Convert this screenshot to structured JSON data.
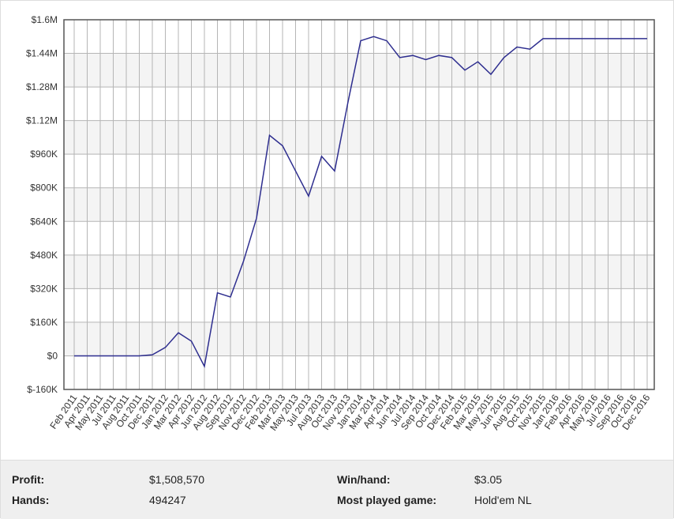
{
  "chart_data": {
    "type": "line",
    "categories": [
      "Feb 2011",
      "Apr 2011",
      "May 2011",
      "Jul 2011",
      "Aug 2011",
      "Oct 2011",
      "Dec 2011",
      "Jan 2012",
      "Mar 2012",
      "Apr 2012",
      "Jun 2012",
      "Aug 2012",
      "Sep 2012",
      "Nov 2012",
      "Dec 2012",
      "Feb 2013",
      "Mar 2013",
      "May 2013",
      "Jul 2013",
      "Aug 2013",
      "Oct 2013",
      "Nov 2013",
      "Jan 2014",
      "Mar 2014",
      "Apr 2014",
      "Jun 2014",
      "Jul 2014",
      "Sep 2014",
      "Oct 2014",
      "Dec 2014",
      "Feb 2015",
      "Mar 2015",
      "May 2015",
      "Jun 2015",
      "Aug 2015",
      "Oct 2015",
      "Nov 2015",
      "Jan 2016",
      "Feb 2016",
      "Apr 2016",
      "May 2016",
      "Jul 2016",
      "Sep 2016",
      "Oct 2016",
      "Dec 2016"
    ],
    "values": [
      0,
      0,
      0,
      0,
      0,
      0,
      5000,
      40000,
      110000,
      70000,
      -50000,
      300000,
      280000,
      450000,
      655000,
      1050000,
      1000000,
      880000,
      760000,
      950000,
      880000,
      1200000,
      1500000,
      1520000,
      1500000,
      1420000,
      1430000,
      1410000,
      1430000,
      1420000,
      1360000,
      1400000,
      1340000,
      1420000,
      1470000,
      1460000,
      1510000,
      1510000,
      1510000,
      1510000,
      1510000,
      1510000,
      1510000,
      1510000,
      1510000
    ],
    "color": "#2e2e8f",
    "ylim": [
      -160000,
      1600000
    ],
    "yticks": [
      {
        "value": -160000,
        "label": "$-160K"
      },
      {
        "value": 0,
        "label": "$0"
      },
      {
        "value": 160000,
        "label": "$160K"
      },
      {
        "value": 320000,
        "label": "$320K"
      },
      {
        "value": 480000,
        "label": "$480K"
      },
      {
        "value": 640000,
        "label": "$640K"
      },
      {
        "value": 800000,
        "label": "$800K"
      },
      {
        "value": 960000,
        "label": "$960K"
      },
      {
        "value": 1120000,
        "label": "$1.12M"
      },
      {
        "value": 1280000,
        "label": "$1.28M"
      },
      {
        "value": 1440000,
        "label": "$1.44M"
      },
      {
        "value": 1600000,
        "label": "$1.6M"
      }
    ],
    "grid": true
  },
  "stats": [
    {
      "label": "Profit:",
      "value": "$1,508,570"
    },
    {
      "label": "Win/hand:",
      "value": "$3.05"
    },
    {
      "label": "Hands:",
      "value": "494247"
    },
    {
      "label": "Most played game:",
      "value": "Hold'em NL"
    }
  ]
}
